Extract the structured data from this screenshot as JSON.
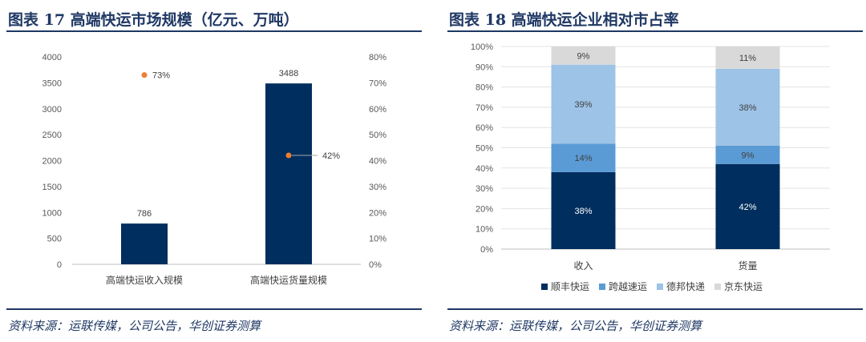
{
  "left": {
    "title": "图表 17   高端快运市场规模（亿元、万吨）",
    "source": "资料来源：运联传媒，公司公告，华创证券测算"
  },
  "right": {
    "title": "图表 18   高端快运企业相对市占率",
    "source": "资料来源：运联传媒，公司公告，华创证券测算"
  },
  "chart_data": [
    {
      "type": "bar",
      "title": "",
      "categories": [
        "高端快运收入规模",
        "高端快运货量规模"
      ],
      "values": [
        786,
        3488
      ],
      "ylim": [
        0,
        4000
      ],
      "yticks": [
        0,
        500,
        1000,
        1500,
        2000,
        2500,
        3000,
        3500,
        4000
      ],
      "y2lim": [
        0,
        80
      ],
      "y2ticks": [
        "0%",
        "10%",
        "20%",
        "30%",
        "40%",
        "50%",
        "60%",
        "70%",
        "80%"
      ],
      "secondary_points": [
        {
          "category": "高端快运收入规模",
          "value": 73,
          "label": "73%"
        },
        {
          "category": "高端快运货量规模",
          "value": 42,
          "label": "42%"
        }
      ],
      "bar_color": "#002e5f",
      "point_color": "#ed7d31",
      "grid": false,
      "legend": "none"
    },
    {
      "type": "bar",
      "stacked": true,
      "title": "",
      "categories": [
        "收入",
        "货量"
      ],
      "series": [
        {
          "name": "顺丰快运",
          "values": [
            38,
            42
          ],
          "labels": [
            "38%",
            "42%"
          ],
          "color": "#002e5f"
        },
        {
          "name": "跨越速运",
          "values": [
            14,
            9
          ],
          "labels": [
            "14%",
            "9%"
          ],
          "color": "#5b9bd5"
        },
        {
          "name": "德邦快递",
          "values": [
            39,
            38
          ],
          "labels": [
            "39%",
            "38%"
          ],
          "color": "#9dc3e6"
        },
        {
          "name": "京东快运",
          "values": [
            9,
            11
          ],
          "labels": [
            "9%",
            "11%"
          ],
          "color": "#d9d9d9"
        }
      ],
      "ylim": [
        0,
        100
      ],
      "yticks": [
        "0%",
        "10%",
        "20%",
        "30%",
        "40%",
        "50%",
        "60%",
        "70%",
        "80%",
        "90%",
        "100%"
      ],
      "grid": true,
      "legend": "bottom"
    }
  ]
}
